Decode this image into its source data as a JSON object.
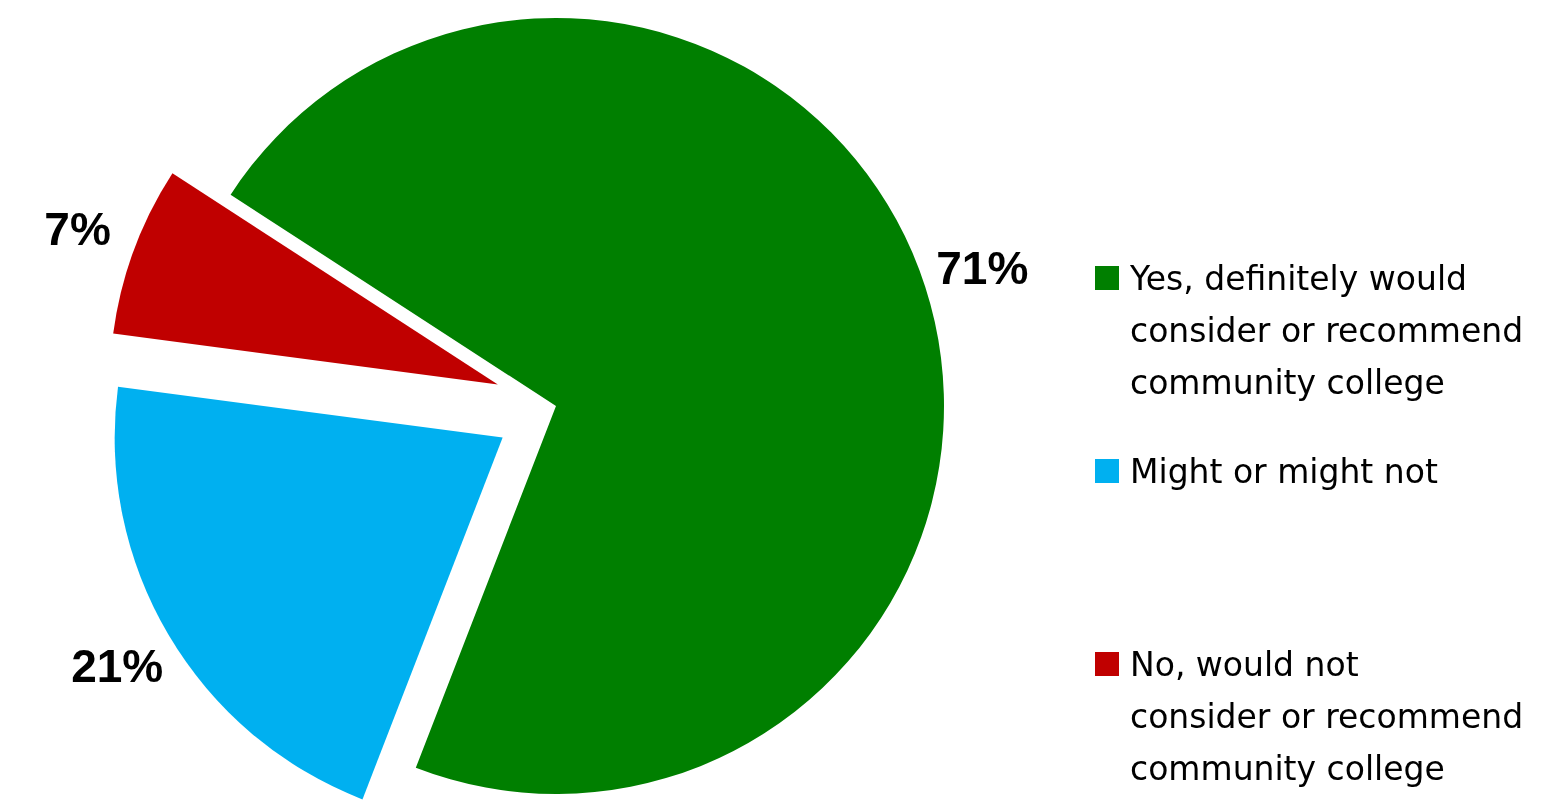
{
  "chart_data": {
    "type": "pie",
    "categories": [
      "Yes, definitely would consider or recommend community college",
      "Might or might not",
      "No, would not consider or recommend community college"
    ],
    "values": [
      71,
      21,
      7
    ],
    "colors": [
      "#007f00",
      "#00b0f0",
      "#c00000"
    ],
    "value_labels": [
      "71%",
      "21%",
      "7%"
    ],
    "legend": "right"
  }
}
